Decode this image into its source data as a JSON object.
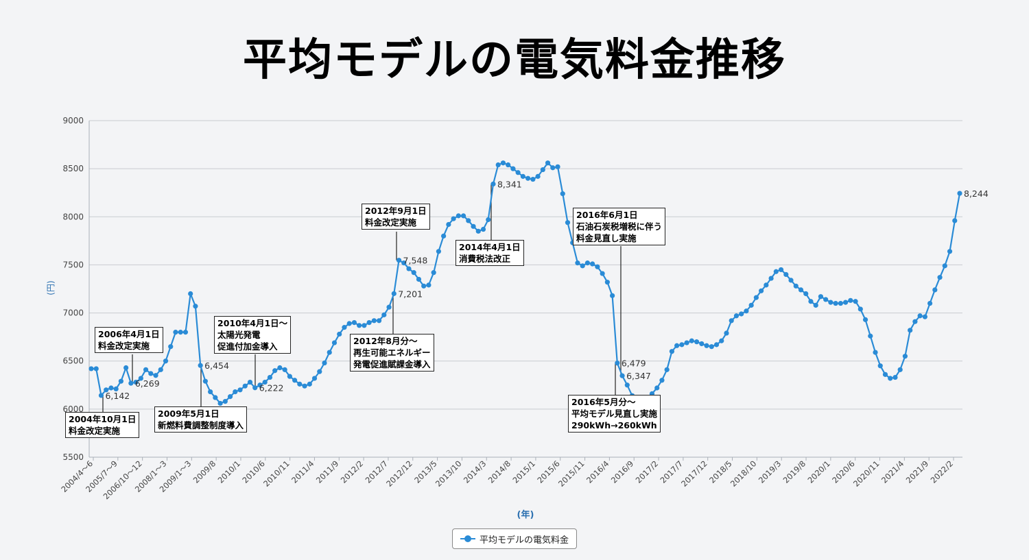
{
  "chart_data": {
    "type": "line",
    "title": "平均モデルの電気料金推移",
    "xlabel": "(年)",
    "ylabel": "(円)",
    "ylim": [
      5500,
      9000
    ],
    "yticks": [
      5500,
      6000,
      6500,
      7000,
      7500,
      8000,
      8500,
      9000
    ],
    "grid": true,
    "legend_position": "bottom-center",
    "line_color": "#2a8bd6",
    "x_tick_labels": [
      "2004/4～6",
      "2005/7～9",
      "2006/10～12",
      "2008/1～3",
      "2009/1～3",
      "2009/8",
      "2010/1",
      "2010/6",
      "2010/11",
      "2011/4",
      "2011/9",
      "2012/2",
      "2012/7",
      "2012/12",
      "2013/5",
      "2013/10",
      "2014/3",
      "2014/8",
      "2015/1",
      "2015/6",
      "2015/11",
      "2016/4",
      "2016/9",
      "2017/2",
      "2017/7",
      "2017/12",
      "2018/5",
      "2018/10",
      "2019/3",
      "2019/8",
      "2020/1",
      "2020/6",
      "2020/11",
      "2021/4",
      "2021/9",
      "2022/2"
    ],
    "series": [
      {
        "name": "平均モデルの電気料金",
        "values": [
          6420,
          6420,
          6142,
          6200,
          6220,
          6210,
          6290,
          6430,
          6269,
          6280,
          6320,
          6410,
          6370,
          6350,
          6410,
          6500,
          6650,
          6800,
          6800,
          6800,
          7200,
          7070,
          6454,
          6290,
          6180,
          6120,
          6060,
          6080,
          6130,
          6180,
          6200,
          6240,
          6280,
          6222,
          6250,
          6280,
          6330,
          6400,
          6430,
          6410,
          6340,
          6300,
          6260,
          6240,
          6260,
          6320,
          6390,
          6480,
          6590,
          6690,
          6780,
          6850,
          6890,
          6900,
          6870,
          6870,
          6900,
          6920,
          6920,
          6980,
          7060,
          7201,
          7548,
          7520,
          7460,
          7420,
          7350,
          7280,
          7290,
          7420,
          7640,
          7800,
          7920,
          7980,
          8010,
          8010,
          7960,
          7900,
          7850,
          7870,
          7970,
          8341,
          8540,
          8560,
          8540,
          8500,
          8460,
          8420,
          8400,
          8390,
          8420,
          8490,
          8560,
          8510,
          8520,
          8240,
          7940,
          7730,
          7520,
          7490,
          7520,
          7510,
          7480,
          7410,
          7320,
          7180,
          6479,
          6347,
          6250,
          6140,
          6100,
          6100,
          6120,
          6160,
          6220,
          6300,
          6410,
          6600,
          6660,
          6670,
          6690,
          6710,
          6700,
          6680,
          6660,
          6650,
          6670,
          6710,
          6790,
          6920,
          6970,
          6990,
          7020,
          7080,
          7160,
          7230,
          7290,
          7360,
          7430,
          7450,
          7400,
          7340,
          7280,
          7240,
          7200,
          7120,
          7080,
          7170,
          7140,
          7110,
          7100,
          7100,
          7110,
          7130,
          7120,
          7040,
          6930,
          6760,
          6590,
          6450,
          6360,
          6320,
          6330,
          6410,
          6550,
          6820,
          6910,
          6970,
          6960,
          7100,
          7240,
          7370,
          7490,
          7640,
          7960,
          8244
        ]
      }
    ],
    "data_labels": [
      {
        "index": 2,
        "text": "6,142"
      },
      {
        "index": 8,
        "text": "6,269"
      },
      {
        "index": 22,
        "text": "6,454"
      },
      {
        "index": 33,
        "text": "6,222"
      },
      {
        "index": 61,
        "text": "7,201"
      },
      {
        "index": 62,
        "text": "7,548"
      },
      {
        "index": 81,
        "text": "8,341"
      },
      {
        "index": 106,
        "text": "6,479"
      },
      {
        "index": 107,
        "text": "6,347"
      },
      {
        "index": 175,
        "text": "8,244"
      }
    ],
    "annotations": [
      {
        "lines": [
          "2004年10月1日",
          "料金改定実施"
        ]
      },
      {
        "lines": [
          "2006年4月1日",
          "料金改定実施"
        ]
      },
      {
        "lines": [
          "2009年5月1日",
          "新燃料費調整制度導入"
        ]
      },
      {
        "lines": [
          "2010年4月1日～",
          "太陽光発電",
          "促進付加金導入"
        ]
      },
      {
        "lines": [
          "2012年9月1日",
          "料金改定実施"
        ]
      },
      {
        "lines": [
          "2012年8月分～",
          "再生可能エネルギー",
          "発電促進賦課金導入"
        ]
      },
      {
        "lines": [
          "2014年4月1日",
          "消費税法改正"
        ]
      },
      {
        "lines": [
          "2016年6月1日",
          "石油石炭税増税に伴う",
          "料金見直し実施"
        ]
      },
      {
        "lines": [
          "2016年5月分～",
          "平均モデル見直し実施",
          "290kWh→260kWh"
        ]
      }
    ]
  }
}
